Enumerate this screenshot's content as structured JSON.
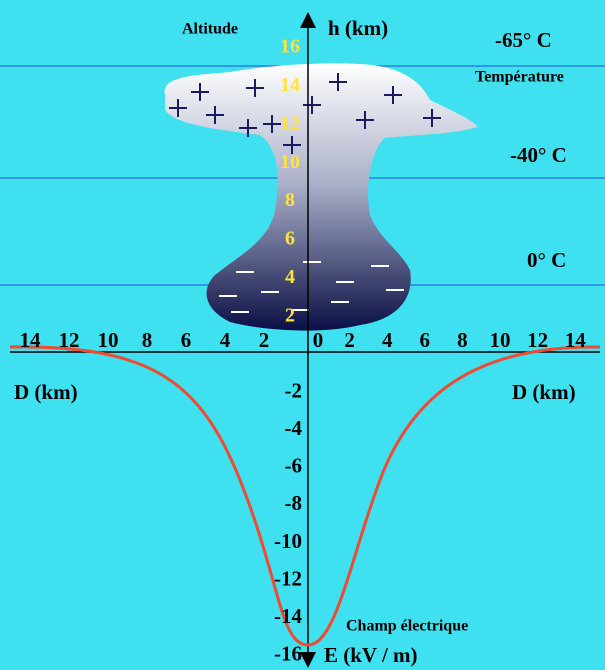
{
  "labels": {
    "altitude": "Altitude",
    "h_axis": "h (km)",
    "temperature": "Température",
    "temps": [
      "-65° C",
      "-40° C",
      "0° C"
    ],
    "d_left": "D (km)",
    "d_right": "D (km)",
    "field": "Champ électrique",
    "e_axis": "E (kV / m)"
  },
  "altitude_ticks": [
    16,
    14,
    12,
    10,
    8,
    6,
    4,
    2
  ],
  "distance_ticks": [
    14,
    12,
    10,
    8,
    6,
    4,
    2,
    0,
    2,
    4,
    6,
    8,
    10,
    12,
    14
  ],
  "field_ticks": [
    -2,
    -4,
    -6,
    -8,
    -10,
    -12,
    -14,
    -16
  ]
}
